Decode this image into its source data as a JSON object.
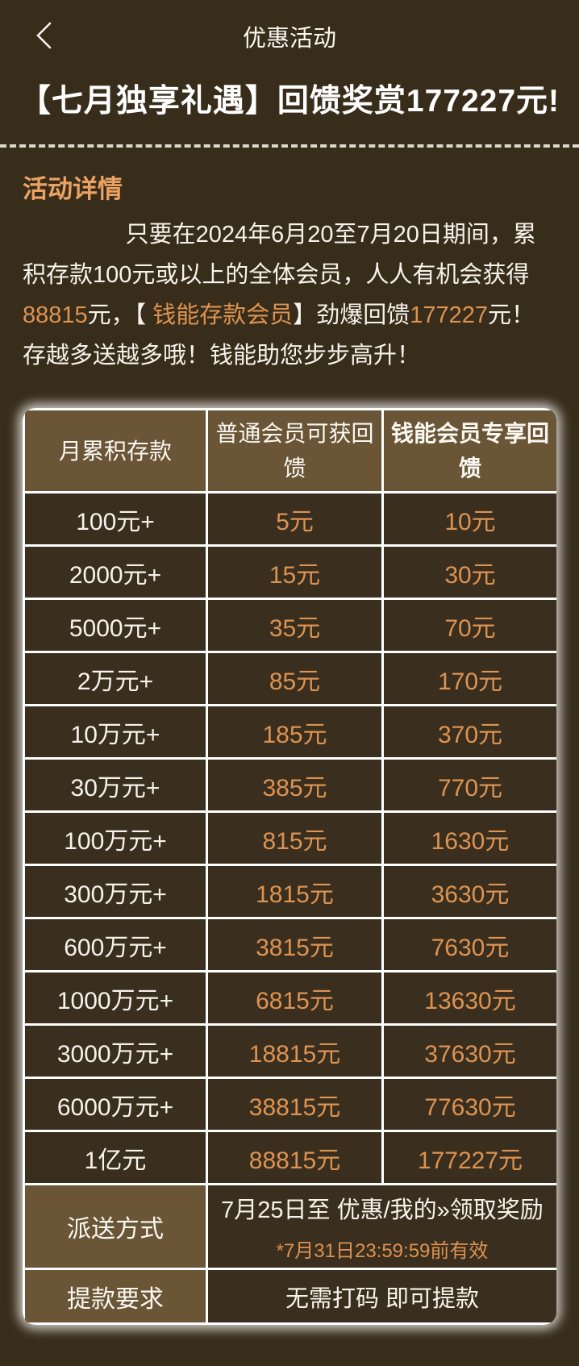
{
  "colors": {
    "page_bg": "#382d1b",
    "cell_bg": "#3a2f1e",
    "label_bg": "#6a5637",
    "accent_orange": "#dd9352",
    "heading_orange": "#eba262",
    "text_white": "#f7f3ec"
  },
  "header": {
    "back_icon": "chevron-left",
    "title": "优惠活动"
  },
  "promo": {
    "title": "【七月独享礼遇】回馈奖赏177227元!"
  },
  "details": {
    "heading": "活动详情",
    "paragraph": [
      {
        "text": "只要在2024年6月20至7月20日期间，累积存款100元或以上的全体会员，人人有机会获得",
        "highlight": false
      },
      {
        "text": "88815",
        "highlight": true
      },
      {
        "text": "元，【 ",
        "highlight": false
      },
      {
        "text": "钱能存款会员",
        "highlight": true
      },
      {
        "text": "】劲爆回馈",
        "highlight": false
      },
      {
        "text": "177227",
        "highlight": true
      },
      {
        "text": "元！存越多送越多哦！钱能助您步步高升！",
        "highlight": false
      }
    ]
  },
  "table": {
    "headers": [
      "月累积存款",
      "普通会员可获回馈",
      "钱能会员专享回馈"
    ],
    "rows": [
      [
        "100元+",
        "5元",
        "10元"
      ],
      [
        "2000元+",
        "15元",
        "30元"
      ],
      [
        "5000元+",
        "35元",
        "70元"
      ],
      [
        "2万元+",
        "85元",
        "170元"
      ],
      [
        "10万元+",
        "185元",
        "370元"
      ],
      [
        "30万元+",
        "385元",
        "770元"
      ],
      [
        "100万元+",
        "815元",
        "1630元"
      ],
      [
        "300万元+",
        "1815元",
        "3630元"
      ],
      [
        "600万元+",
        "3815元",
        "7630元"
      ],
      [
        "1000万元+",
        "6815元",
        "13630元"
      ],
      [
        "3000万元+",
        "18815元",
        "37630元"
      ],
      [
        "6000万元+",
        "38815元",
        "77630元"
      ],
      [
        "1亿元",
        "88815元",
        "177227元"
      ]
    ],
    "delivery": {
      "label": "派送方式",
      "line1": "7月25日至 优惠/我的»领取奖励",
      "line2": "*7月31日23:59:59前有效"
    },
    "withdraw": {
      "label": "提款要求",
      "value": "无需打码 即可提款"
    }
  }
}
